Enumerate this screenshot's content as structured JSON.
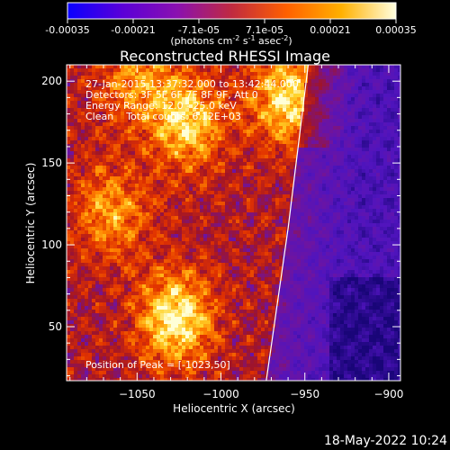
{
  "colorbar": {
    "ticks": [
      "-0.00035",
      "-0.00021",
      "-7.1e-05",
      "7.1e-05",
      "0.00021",
      "0.00035"
    ],
    "unit_main": "(photons cm",
    "unit_sup1": "-2",
    "unit_mid": " s",
    "unit_sup2": "-1",
    "unit_end": " asec",
    "unit_sup3": "-2",
    "unit_close": ")",
    "stops": [
      "#0a00ff",
      "#5a00d8",
      "#8a10b0",
      "#c02a40",
      "#ff6000",
      "#ffb000",
      "#ffffe0"
    ]
  },
  "chart_data": {
    "type": "heatmap",
    "title": "Reconstructed RHESSI Image",
    "xlabel": "Heliocentric X (arcsec)",
    "ylabel": "Heliocentric Y (arcsec)",
    "xlim": [
      -1092,
      -893
    ],
    "ylim": [
      17,
      210
    ],
    "x_ticks": [
      -1050,
      -1000,
      -950,
      -900
    ],
    "x_tick_labels": [
      "−1050",
      "−1000",
      "−950",
      "−900"
    ],
    "y_ticks": [
      50,
      100,
      150,
      200
    ],
    "y_tick_labels": [
      "50",
      "100",
      "150",
      "200"
    ],
    "annotations": [
      "27-Jan-2015 13:37:32.000 to 13:42:44.000",
      "Detectors: 3F 5F 6F 7F 8F 9F, Att 0",
      "Energy Range: 12.0 - 25.0 keV",
      "Clean    Total counts: 6.12E+03"
    ],
    "peak_label": "Position of Peak = [-1023,50]",
    "peak": [
      -1023,
      50
    ],
    "limb_points": [
      [
        -973,
        17
      ],
      [
        -960,
        110
      ],
      [
        -948,
        210
      ]
    ],
    "bright_regions": [
      {
        "x": -1027,
        "y": 55,
        "weight": 1.0
      },
      {
        "x": -1020,
        "y": 175,
        "weight": 0.85
      },
      {
        "x": -960,
        "y": 190,
        "weight": 0.9
      },
      {
        "x": -1065,
        "y": 120,
        "weight": 0.6
      },
      {
        "x": -1050,
        "y": 200,
        "weight": 0.55
      }
    ],
    "grid": false
  },
  "footer": {
    "date": "18-May-2022 10:24"
  }
}
